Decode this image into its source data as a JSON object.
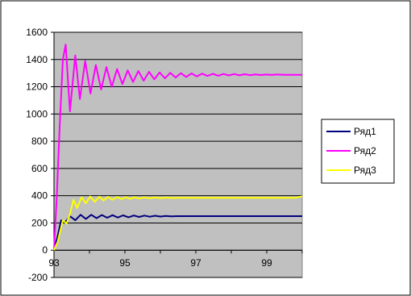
{
  "chart_data": {
    "type": "line",
    "title": "",
    "xlabel": "",
    "ylabel": "",
    "xlim": [
      93,
      100
    ],
    "ylim": [
      -200,
      1600
    ],
    "x_ticks": [
      "93",
      "95",
      "97",
      "99"
    ],
    "y_ticks": [
      "-200",
      "0",
      "200",
      "400",
      "600",
      "800",
      "1000",
      "1200",
      "1400",
      "1600"
    ],
    "grid": "horizontal",
    "plot_background": "#c0c0c0",
    "legend_position": "right",
    "series": [
      {
        "name": "Ряд1",
        "color": "#000080",
        "x": [
          93.0,
          93.1,
          93.2,
          93.3,
          93.45,
          93.6,
          93.75,
          93.9,
          94.05,
          94.2,
          94.35,
          94.5,
          94.65,
          94.8,
          94.95,
          95.1,
          95.25,
          95.4,
          95.55,
          95.7,
          95.85,
          96.0,
          96.15,
          96.3,
          96.5,
          97.0,
          98.0,
          99.0,
          100.0
        ],
        "values": [
          0,
          100,
          220,
          200,
          250,
          220,
          260,
          230,
          260,
          235,
          258,
          238,
          257,
          240,
          256,
          242,
          255,
          244,
          254,
          246,
          253,
          247,
          252,
          248,
          250,
          250,
          250,
          250,
          250
        ]
      },
      {
        "name": "Ряд2",
        "color": "#ff00ff",
        "x": [
          93.0,
          93.08,
          93.16,
          93.25,
          93.33,
          93.45,
          93.6,
          93.73,
          93.88,
          94.03,
          94.18,
          94.33,
          94.48,
          94.63,
          94.78,
          94.93,
          95.08,
          95.23,
          95.38,
          95.53,
          95.68,
          95.83,
          95.98,
          96.13,
          96.28,
          96.43,
          96.58,
          96.73,
          96.88,
          97.03,
          97.18,
          97.33,
          97.48,
          97.63,
          97.78,
          97.93,
          98.08,
          98.23,
          98.38,
          98.53,
          98.68,
          98.83,
          98.98,
          99.13,
          99.28,
          99.5,
          100.0
        ],
        "values": [
          0,
          400,
          900,
          1400,
          1510,
          1020,
          1430,
          1110,
          1390,
          1150,
          1360,
          1180,
          1345,
          1200,
          1330,
          1220,
          1320,
          1235,
          1315,
          1245,
          1310,
          1255,
          1305,
          1262,
          1302,
          1268,
          1300,
          1272,
          1298,
          1276,
          1296,
          1279,
          1295,
          1281,
          1294,
          1283,
          1293,
          1284,
          1292,
          1285,
          1291,
          1286,
          1290,
          1287,
          1290,
          1288,
          1288
        ]
      },
      {
        "name": "Ряд3",
        "color": "#ffff00",
        "x": [
          93.0,
          93.1,
          93.25,
          93.35,
          93.45,
          93.55,
          93.65,
          93.78,
          93.9,
          94.02,
          94.15,
          94.28,
          94.4,
          94.52,
          94.65,
          94.78,
          94.9,
          95.03,
          95.15,
          95.28,
          95.4,
          95.55,
          95.7,
          95.85,
          96.0,
          96.15,
          96.3,
          96.5,
          97.0,
          98.0,
          99.0,
          99.8,
          100.0
        ],
        "values": [
          0,
          60,
          220,
          195,
          265,
          370,
          310,
          390,
          345,
          395,
          355,
          393,
          365,
          392,
          370,
          391,
          375,
          390,
          377,
          389,
          379,
          388,
          381,
          387,
          382,
          386,
          383,
          385,
          385,
          385,
          385,
          385,
          395
        ]
      }
    ]
  }
}
